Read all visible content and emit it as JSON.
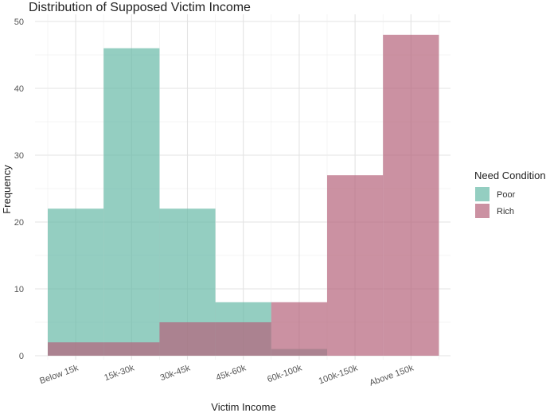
{
  "chart_data": {
    "type": "bar",
    "title": "Distribution of Supposed Victim Income",
    "xlabel": "Victim Income",
    "ylabel": "Frequency",
    "categories": [
      "Below 15k",
      "15k-30k",
      "30k-45k",
      "45k-60k",
      "60k-100k",
      "100k-150k",
      "Above 150k"
    ],
    "series": [
      {
        "name": "Poor",
        "values": [
          22,
          46,
          22,
          8,
          1,
          0,
          0
        ],
        "color": "#66b9a6"
      },
      {
        "name": "Rich",
        "values": [
          2,
          2,
          5,
          5,
          8,
          27,
          48
        ],
        "color": "#b5637a"
      }
    ],
    "ylim": [
      0,
      50
    ],
    "yticks": [
      0,
      10,
      20,
      30,
      40,
      50
    ],
    "grid": true,
    "overlay": true,
    "legend": {
      "title": "Need Condition",
      "position": "right"
    }
  }
}
